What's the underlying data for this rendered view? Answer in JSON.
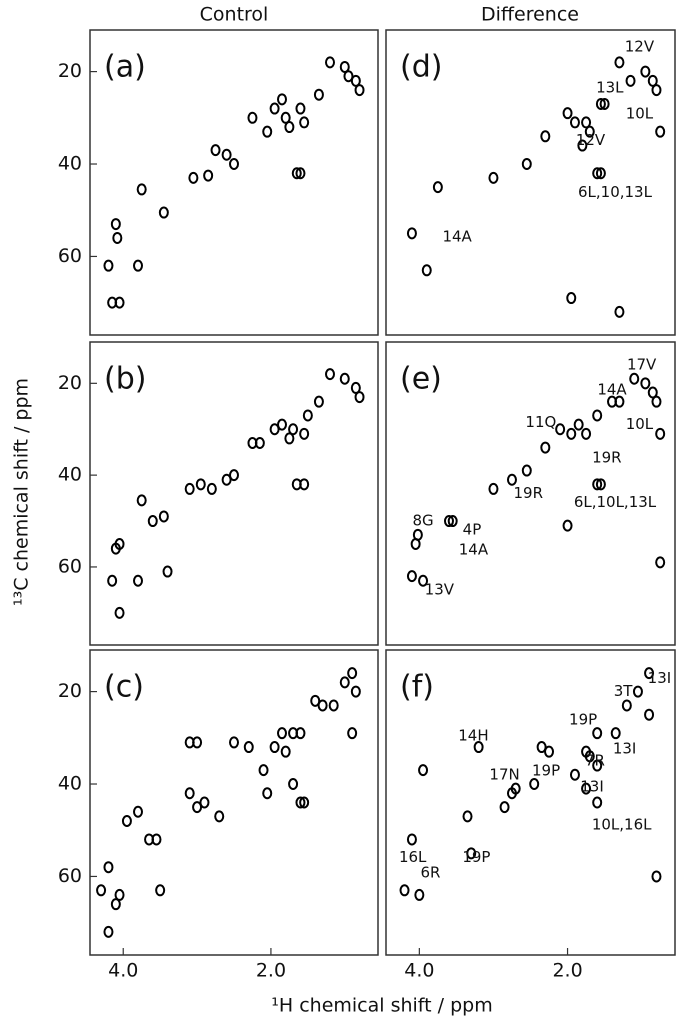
{
  "figure": {
    "column_titles": [
      "Control",
      "Difference"
    ],
    "xlabel": "¹H chemical shift / ppm",
    "ylabel": "¹³C chemical shift / ppm"
  },
  "chart_data": [
    {
      "type": "scatter",
      "title": "(a)",
      "color": "#000000",
      "xlim": [
        4.45,
        0.55
      ],
      "ylim": [
        11,
        77
      ],
      "yticks": [
        20,
        40,
        60
      ],
      "x": [
        4.2,
        4.15,
        4.05,
        4.1,
        4.08,
        3.8,
        3.75,
        3.45,
        3.05,
        2.85,
        2.75,
        2.6,
        2.5,
        2.25,
        2.05,
        1.95,
        1.85,
        1.8,
        1.75,
        1.6,
        1.55,
        1.65,
        1.6,
        1.35,
        1.2,
        1.0,
        0.95,
        0.85,
        0.8
      ],
      "values": [
        62,
        70,
        70,
        53,
        56,
        62,
        45.5,
        50.5,
        43,
        42.5,
        37,
        38,
        40,
        30,
        33,
        28,
        26,
        30,
        32,
        28,
        31,
        42,
        42,
        25,
        18,
        19,
        21,
        22,
        24
      ]
    },
    {
      "type": "scatter",
      "title": "(b)",
      "color": "#000000",
      "xlim": [
        4.45,
        0.55
      ],
      "ylim": [
        11,
        77
      ],
      "yticks": [
        20,
        40,
        60
      ],
      "x": [
        4.05,
        4.15,
        4.1,
        4.05,
        3.8,
        3.75,
        3.6,
        3.45,
        3.4,
        3.1,
        2.95,
        2.8,
        2.6,
        2.5,
        2.25,
        2.15,
        1.95,
        1.85,
        1.75,
        1.7,
        1.55,
        1.5,
        1.65,
        1.55,
        1.35,
        1.2,
        1.0,
        0.85,
        0.8
      ],
      "values": [
        70,
        63,
        56,
        55,
        63,
        45.5,
        50,
        49,
        61,
        43,
        42,
        43,
        41,
        40,
        33,
        33,
        30,
        29,
        32,
        30,
        31,
        27,
        42,
        42,
        24,
        18,
        19,
        21,
        23
      ]
    },
    {
      "type": "scatter",
      "title": "(c)",
      "color": "#000000",
      "xlim": [
        4.45,
        0.55
      ],
      "ylim": [
        11,
        77
      ],
      "yticks": [
        20,
        40,
        60
      ],
      "xticks": [
        {
          "value": 4,
          "label": "4.0"
        },
        {
          "value": 2,
          "label": "2.0"
        }
      ],
      "x": [
        4.3,
        4.2,
        4.2,
        4.1,
        4.05,
        3.95,
        3.8,
        3.65,
        3.55,
        3.5,
        3.1,
        3.0,
        3.1,
        3.0,
        2.9,
        2.7,
        2.5,
        2.3,
        2.1,
        2.05,
        1.95,
        1.85,
        1.8,
        1.7,
        1.6,
        1.7,
        1.55,
        1.6,
        1.4,
        1.3,
        1.15,
        1.0,
        0.9,
        0.85,
        0.9
      ],
      "values": [
        63,
        72,
        58,
        66,
        64,
        48,
        46,
        52,
        52,
        63,
        31,
        31,
        42,
        45,
        44,
        47,
        31,
        32,
        37,
        42,
        32,
        29,
        33,
        29,
        29,
        40,
        44,
        44,
        22,
        23,
        23,
        18,
        16,
        20,
        29
      ]
    },
    {
      "type": "scatter",
      "title": "(d)",
      "color": "#000000",
      "xlim": [
        4.45,
        0.55
      ],
      "ylim": [
        11,
        77
      ],
      "x": [
        4.1,
        3.75,
        3.0,
        2.55,
        2.3,
        2.0,
        1.9,
        1.75,
        1.7,
        1.55,
        1.6,
        1.55,
        1.3,
        1.15,
        0.95,
        0.85,
        0.8,
        0.75,
        1.95,
        1.3,
        3.9,
        1.8,
        1.5
      ],
      "values": [
        55,
        45,
        43,
        40,
        34,
        29,
        31,
        31,
        33,
        27,
        42,
        42,
        18,
        22,
        20,
        22,
        24,
        33,
        69,
        72,
        63,
        36,
        27
      ],
      "annotations": [
        {
          "text": "12V",
          "x": 1.03,
          "y": 14.7
        },
        {
          "text": "13L",
          "x": 1.43,
          "y": 23.5
        },
        {
          "text": "10L",
          "x": 1.03,
          "y": 29.2
        },
        {
          "text": "12V",
          "x": 1.69,
          "y": 34.9
        },
        {
          "text": "6L,10,13L",
          "x": 1.36,
          "y": 46.2
        },
        {
          "text": "14A",
          "x": 3.49,
          "y": 55.8
        }
      ]
    },
    {
      "type": "scatter",
      "title": "(e)",
      "color": "#000000",
      "xlim": [
        4.45,
        0.55
      ],
      "ylim": [
        11,
        77
      ],
      "x": [
        4.1,
        3.95,
        4.05,
        4.02,
        3.6,
        3.55,
        3.0,
        2.75,
        2.55,
        2.3,
        2.1,
        1.95,
        1.85,
        1.75,
        1.6,
        1.55,
        1.6,
        1.3,
        1.1,
        0.95,
        0.85,
        0.8,
        2.0,
        0.75,
        0.75,
        1.4
      ],
      "values": [
        62,
        63,
        55,
        53,
        50,
        50,
        43,
        41,
        39,
        34,
        30,
        31,
        29,
        31,
        27,
        42,
        42,
        24,
        19,
        20,
        22,
        24,
        51,
        59,
        31,
        24
      ],
      "annotations": [
        {
          "text": "17V",
          "x": 1.0,
          "y": 16
        },
        {
          "text": "14A",
          "x": 1.4,
          "y": 21.5
        },
        {
          "text": "11Q",
          "x": 2.36,
          "y": 28.5
        },
        {
          "text": "10L",
          "x": 1.03,
          "y": 29
        },
        {
          "text": "19R",
          "x": 1.47,
          "y": 36.3
        },
        {
          "text": "19R",
          "x": 2.53,
          "y": 44
        },
        {
          "text": "6L,10L,13L",
          "x": 1.36,
          "y": 46
        },
        {
          "text": "8G",
          "x": 3.95,
          "y": 50
        },
        {
          "text": "4P",
          "x": 3.29,
          "y": 52
        },
        {
          "text": "14A",
          "x": 3.27,
          "y": 56.3
        },
        {
          "text": "13V",
          "x": 3.73,
          "y": 65
        }
      ]
    },
    {
      "type": "scatter",
      "title": "(f)",
      "color": "#000000",
      "xlim": [
        4.45,
        0.55
      ],
      "ylim": [
        11,
        77
      ],
      "xticks": [
        {
          "value": 4,
          "label": "4.0"
        },
        {
          "value": 2,
          "label": "2.0"
        }
      ],
      "x": [
        4.2,
        4.1,
        4.0,
        3.95,
        3.35,
        3.2,
        3.3,
        2.85,
        2.75,
        2.7,
        2.45,
        2.25,
        2.35,
        1.9,
        1.75,
        1.7,
        1.6,
        1.75,
        1.6,
        1.35,
        1.2,
        1.05,
        0.9,
        0.9,
        0.8,
        1.6
      ],
      "values": [
        63,
        52,
        64,
        37,
        47,
        32,
        55,
        45,
        42,
        41,
        40,
        33,
        32,
        38,
        33,
        34,
        29,
        41,
        44,
        29,
        23,
        20,
        16,
        25,
        60,
        36
      ],
      "annotations": [
        {
          "text": "13I",
          "x": 0.76,
          "y": 17.2
        },
        {
          "text": "3T",
          "x": 1.25,
          "y": 20
        },
        {
          "text": "14H",
          "x": 3.27,
          "y": 29.6
        },
        {
          "text": "19P",
          "x": 1.79,
          "y": 26.1
        },
        {
          "text": "7R",
          "x": 1.63,
          "y": 35
        },
        {
          "text": "13I",
          "x": 1.23,
          "y": 32.4
        },
        {
          "text": "19P",
          "x": 2.29,
          "y": 37.2
        },
        {
          "text": "17N",
          "x": 2.85,
          "y": 38
        },
        {
          "text": "13I",
          "x": 1.67,
          "y": 40.6
        },
        {
          "text": "10L,16L",
          "x": 1.27,
          "y": 48.9
        },
        {
          "text": "16L",
          "x": 4.09,
          "y": 55.9
        },
        {
          "text": "6R",
          "x": 3.85,
          "y": 59.3
        },
        {
          "text": "19P",
          "x": 3.23,
          "y": 55.9
        }
      ]
    }
  ]
}
